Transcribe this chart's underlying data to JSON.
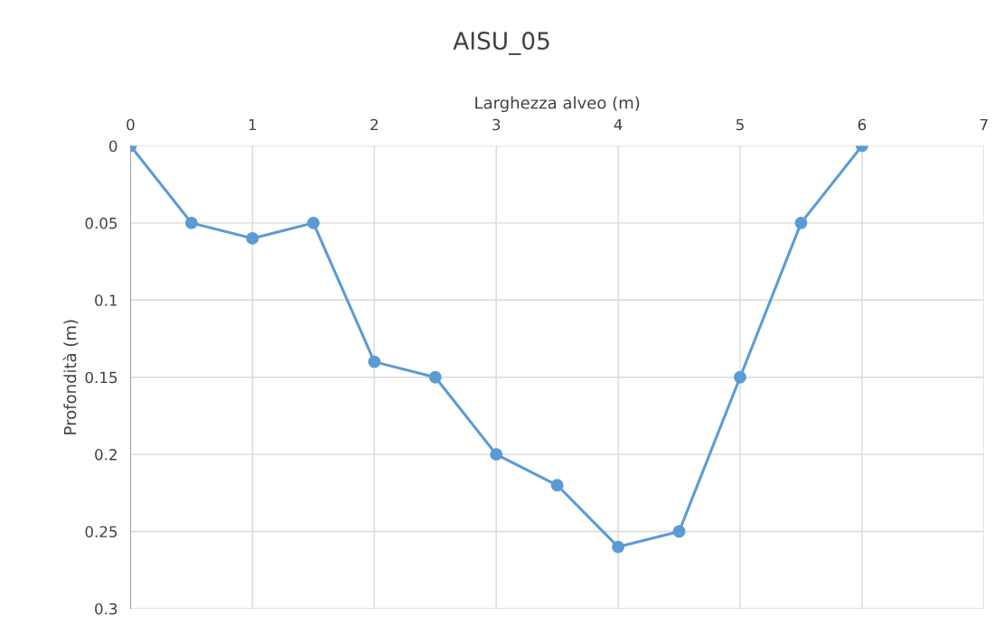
{
  "chart_data": {
    "type": "line",
    "title": "AISU_05",
    "xlabel": "Larghezza alveo (m)",
    "ylabel": "Profondità (m)",
    "x": [
      0,
      0.5,
      1,
      1.5,
      2,
      2.5,
      3,
      3.5,
      4,
      4.5,
      5,
      5.5,
      6
    ],
    "series": [
      {
        "color": "#5b9bd5",
        "values": [
          0,
          0.05,
          0.06,
          0.05,
          0.14,
          0.15,
          0.2,
          0.22,
          0.26,
          0.25,
          0.15,
          0.05,
          0
        ]
      }
    ],
    "xlim": [
      0,
      7
    ],
    "xticks": [
      0,
      1,
      2,
      3,
      4,
      5,
      6,
      7
    ],
    "ylim": [
      0.3,
      0
    ],
    "yticks": [
      0,
      0.05,
      0.1,
      0.15,
      0.2,
      0.25,
      0.3
    ],
    "grid": true,
    "marker": "circle",
    "line_style": "solid"
  }
}
